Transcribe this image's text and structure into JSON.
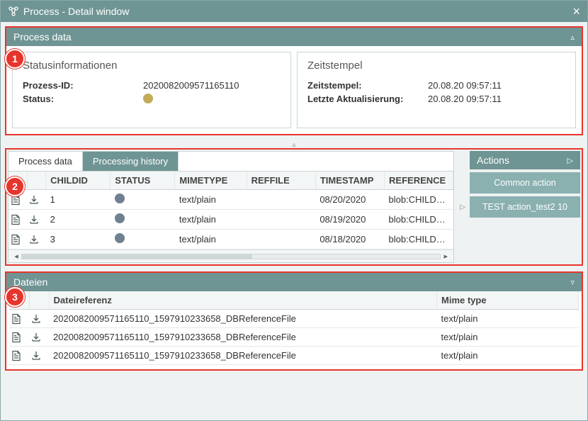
{
  "colors": {
    "brand": "#6f9494",
    "brand_light": "#8ab0b0",
    "highlight": "#e7352c",
    "status_yellow": "#c3ac58",
    "status_gray": "#6f8090",
    "border": "#c9d4d4"
  },
  "window": {
    "title": "Process - Detail window"
  },
  "badges": {
    "one": "1",
    "two": "2",
    "three": "3"
  },
  "process_data": {
    "panel_title": "Process data",
    "left": {
      "heading": "Statusinformationen",
      "rows": [
        {
          "k": "Prozess-ID:",
          "v": "2020082009571165110"
        },
        {
          "k": "Status:",
          "v": "__dot_yellow__"
        }
      ]
    },
    "right": {
      "heading": "Zeitstempel",
      "rows": [
        {
          "k": "Zeitstempel:",
          "v": "20.08.20 09:57:11"
        },
        {
          "k": "Letzte Aktualisierung:",
          "v": "20.08.20 09:57:11"
        }
      ]
    }
  },
  "tabs": {
    "tab1": "Process data",
    "tab2": "Processing history",
    "active_index": 1
  },
  "history_table": {
    "columns": [
      "",
      "",
      "CHILDID",
      "STATUS",
      "MIMETYPE",
      "REFFILE",
      "TIMESTAMP",
      "REFERENCE"
    ],
    "col_widths": [
      "26px",
      "26px",
      "90px",
      "90px",
      "100px",
      "96px",
      "96px",
      "96px"
    ],
    "rows": [
      {
        "childid": "1",
        "status": "__dot_gray__",
        "mimetype": "text/plain",
        "reffile": "",
        "timestamp": "08/20/2020",
        "reference": "blob:CHILD…"
      },
      {
        "childid": "2",
        "status": "__dot_gray__",
        "mimetype": "text/plain",
        "reffile": "",
        "timestamp": "08/19/2020",
        "reference": "blob:CHILD…"
      },
      {
        "childid": "3",
        "status": "__dot_gray__",
        "mimetype": "text/plain",
        "reffile": "",
        "timestamp": "08/18/2020",
        "reference": "blob:CHILD…"
      }
    ]
  },
  "actions": {
    "panel_title": "Actions",
    "buttons": [
      "Common action",
      "TEST action_test2 10"
    ]
  },
  "files": {
    "panel_title": "Dateien",
    "columns": [
      "",
      "",
      "Dateireferenz",
      "Mime type"
    ],
    "rows": [
      {
        "ref": "2020082009571165110_1597910233658_DBReferenceFile",
        "mime": "text/plain"
      },
      {
        "ref": "2020082009571165110_1597910233658_DBReferenceFile",
        "mime": "text/plain"
      },
      {
        "ref": "2020082009571165110_1597910233658_DBReferenceFile",
        "mime": "text/plain"
      }
    ]
  }
}
